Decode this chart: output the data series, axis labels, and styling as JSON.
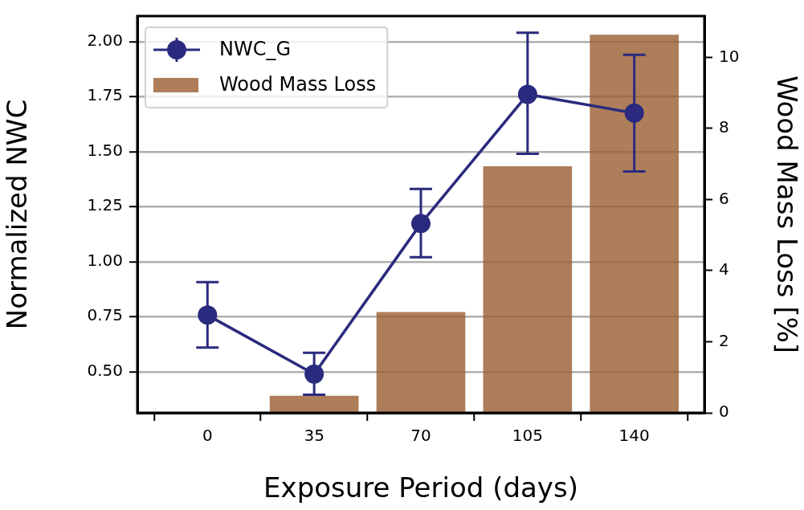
{
  "chart_data": {
    "type": "line",
    "xlabel": "Exposure Period (days)",
    "ylabel": "Normalized NWC",
    "y2label": "Wood Mass Loss [%]",
    "x": [
      0,
      35,
      70,
      105,
      140
    ],
    "series": [
      {
        "name": "NWC_G",
        "color": "#2a2a7e",
        "values": [
          0.757,
          0.489,
          1.173,
          1.76,
          1.675
        ],
        "errors": [
          [
            0.61,
            0.907
          ],
          [
            0.395,
            0.586
          ],
          [
            1.02,
            1.33
          ],
          [
            1.49,
            2.04
          ],
          [
            1.41,
            1.94
          ]
        ]
      },
      {
        "name": "Wood Mass Loss",
        "type": "bar",
        "axis": "y2",
        "color": "#ae7e5a",
        "values": [
          0,
          0.47,
          2.83,
          6.93,
          10.63
        ]
      }
    ],
    "xlim": [
      -23,
      163
    ],
    "xticks": [
      0,
      35,
      70,
      105,
      140
    ],
    "ylim": [
      0.313,
      2.116
    ],
    "yticks": [
      {
        "value": 0.5,
        "label": "0.50"
      },
      {
        "value": 0.75,
        "label": "0.75"
      },
      {
        "value": 1.0,
        "label": "1.00"
      },
      {
        "value": 1.25,
        "label": "1.25"
      },
      {
        "value": 1.5,
        "label": "1.50"
      },
      {
        "value": 1.75,
        "label": "1.75"
      },
      {
        "value": 2.0,
        "label": "2.00"
      }
    ],
    "y2lim": [
      0,
      11.16
    ],
    "y2ticks": [
      0,
      2,
      4,
      6,
      8,
      10
    ],
    "grid": "y",
    "legend": "top left",
    "marker": "circle",
    "line_style": "solid"
  }
}
